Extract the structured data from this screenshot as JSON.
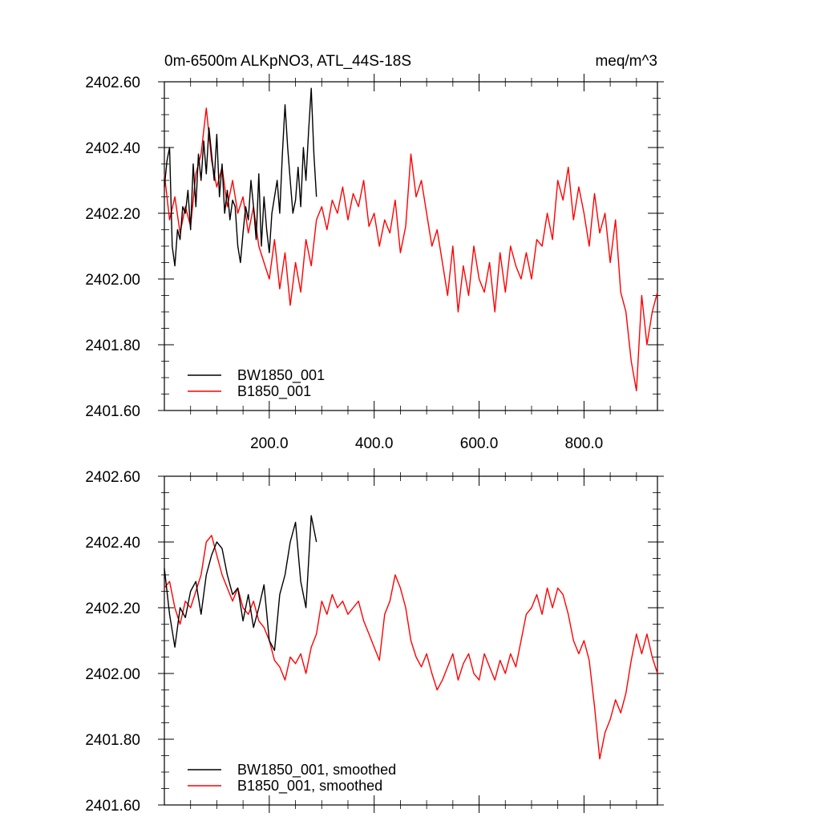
{
  "colors": {
    "BW1850_001": "#000000",
    "B1850_001": "#ff0000"
  },
  "chart_data": [
    {
      "type": "line",
      "title": "0m-6500m ALKpNO3, ATL_44S-18S",
      "units": "meq/m^3",
      "xlim": [
        0,
        940
      ],
      "ylim": [
        2401.6,
        2402.6
      ],
      "yticks": [
        2401.6,
        2401.8,
        2402.0,
        2402.2,
        2402.4,
        2402.6
      ],
      "ytick_labels": [
        "2401.60",
        "2401.80",
        "2402.00",
        "2402.20",
        "2402.40",
        "2402.60"
      ],
      "xticks": [
        200,
        400,
        600,
        800
      ],
      "xtick_labels": [
        "200.0",
        "400.0",
        "600.0",
        "800.0"
      ],
      "legend_position": "bottom-left",
      "series": [
        {
          "name": "BW1850_001",
          "color": "#000000",
          "x": [
            0,
            5,
            10,
            15,
            20,
            25,
            30,
            35,
            40,
            45,
            50,
            55,
            60,
            65,
            70,
            75,
            80,
            85,
            90,
            95,
            100,
            105,
            110,
            115,
            120,
            125,
            130,
            135,
            140,
            145,
            150,
            155,
            160,
            165,
            170,
            175,
            180,
            185,
            190,
            195,
            200,
            205,
            210,
            215,
            220,
            225,
            230,
            235,
            240,
            245,
            250,
            255,
            260,
            265,
            270,
            275,
            280,
            285,
            290
          ],
          "values": [
            2402.28,
            2402.36,
            2402.4,
            2402.1,
            2402.04,
            2402.15,
            2402.12,
            2402.22,
            2402.2,
            2402.27,
            2402.15,
            2402.35,
            2402.22,
            2402.38,
            2402.3,
            2402.42,
            2402.32,
            2402.46,
            2402.38,
            2402.3,
            2402.44,
            2402.25,
            2402.35,
            2402.2,
            2402.27,
            2402.18,
            2402.24,
            2402.22,
            2402.1,
            2402.05,
            2402.14,
            2402.22,
            2402.18,
            2402.3,
            2402.22,
            2402.12,
            2402.32,
            2402.1,
            2402.25,
            2402.15,
            2402.08,
            2402.2,
            2402.25,
            2402.3,
            2402.2,
            2402.38,
            2402.53,
            2402.4,
            2402.3,
            2402.2,
            2402.24,
            2402.34,
            2402.22,
            2402.4,
            2402.3,
            2402.45,
            2402.58,
            2402.38,
            2402.25
          ]
        },
        {
          "name": "B1850_001",
          "color": "#ff0000",
          "x": [
            0,
            10,
            20,
            30,
            40,
            50,
            60,
            70,
            80,
            90,
            100,
            110,
            120,
            130,
            140,
            150,
            160,
            170,
            180,
            190,
            200,
            210,
            220,
            230,
            240,
            250,
            260,
            270,
            280,
            290,
            300,
            310,
            320,
            330,
            340,
            350,
            360,
            370,
            380,
            390,
            400,
            410,
            420,
            430,
            440,
            450,
            460,
            470,
            480,
            490,
            500,
            510,
            520,
            530,
            540,
            550,
            560,
            570,
            580,
            590,
            600,
            610,
            620,
            630,
            640,
            650,
            660,
            670,
            680,
            690,
            700,
            710,
            720,
            730,
            740,
            750,
            760,
            770,
            780,
            790,
            800,
            810,
            820,
            830,
            840,
            850,
            860,
            870,
            880,
            890,
            900,
            910,
            920,
            930,
            940
          ],
          "values": [
            2402.32,
            2402.18,
            2402.25,
            2402.14,
            2402.22,
            2402.16,
            2402.32,
            2402.38,
            2402.52,
            2402.36,
            2402.28,
            2402.34,
            2402.22,
            2402.3,
            2402.2,
            2402.25,
            2402.14,
            2402.22,
            2402.1,
            2402.05,
            2402.0,
            2402.12,
            2401.97,
            2402.08,
            2401.92,
            2402.05,
            2401.96,
            2402.12,
            2402.04,
            2402.18,
            2402.22,
            2402.15,
            2402.24,
            2402.2,
            2402.28,
            2402.18,
            2402.26,
            2402.22,
            2402.3,
            2402.16,
            2402.2,
            2402.1,
            2402.18,
            2402.14,
            2402.24,
            2402.08,
            2402.16,
            2402.38,
            2402.25,
            2402.3,
            2402.2,
            2402.1,
            2402.15,
            2402.05,
            2401.95,
            2402.1,
            2401.9,
            2402.04,
            2401.95,
            2402.1,
            2402.0,
            2401.96,
            2402.05,
            2401.9,
            2402.08,
            2401.96,
            2402.1,
            2402.04,
            2402.0,
            2402.08,
            2402.0,
            2402.12,
            2402.1,
            2402.2,
            2402.12,
            2402.3,
            2402.24,
            2402.34,
            2402.18,
            2402.28,
            2402.2,
            2402.1,
            2402.26,
            2402.14,
            2402.2,
            2402.05,
            2402.18,
            2401.96,
            2401.9,
            2401.75,
            2401.66,
            2401.95,
            2401.8,
            2401.9,
            2401.96
          ]
        }
      ]
    },
    {
      "type": "line",
      "title": "",
      "xlim": [
        0,
        940
      ],
      "ylim": [
        2401.6,
        2402.6
      ],
      "yticks": [
        2401.6,
        2401.8,
        2402.0,
        2402.2,
        2402.4,
        2402.6
      ],
      "ytick_labels": [
        "2401.60",
        "2401.80",
        "2402.00",
        "2402.20",
        "2402.40",
        "2402.60"
      ],
      "xticks": [
        200,
        400,
        600,
        800
      ],
      "xtick_labels": [],
      "legend_position": "bottom-left",
      "series": [
        {
          "name": "BW1850_001, smoothed",
          "color": "#000000",
          "x": [
            0,
            10,
            20,
            30,
            40,
            50,
            60,
            70,
            80,
            90,
            100,
            110,
            120,
            130,
            140,
            150,
            160,
            170,
            180,
            190,
            200,
            210,
            220,
            230,
            240,
            250,
            260,
            270,
            280,
            290
          ],
          "values": [
            2402.32,
            2402.18,
            2402.08,
            2402.2,
            2402.17,
            2402.25,
            2402.28,
            2402.18,
            2402.3,
            2402.36,
            2402.4,
            2402.38,
            2402.3,
            2402.24,
            2402.26,
            2402.16,
            2402.24,
            2402.14,
            2402.2,
            2402.27,
            2402.1,
            2402.07,
            2402.24,
            2402.3,
            2402.4,
            2402.46,
            2402.28,
            2402.2,
            2402.48,
            2402.4
          ]
        },
        {
          "name": "B1850_001, smoothed",
          "color": "#ff0000",
          "x": [
            0,
            10,
            20,
            30,
            40,
            50,
            60,
            70,
            80,
            90,
            100,
            110,
            120,
            130,
            140,
            150,
            160,
            170,
            180,
            190,
            200,
            210,
            220,
            230,
            240,
            250,
            260,
            270,
            280,
            290,
            300,
            310,
            320,
            330,
            340,
            350,
            360,
            370,
            380,
            390,
            400,
            410,
            420,
            430,
            440,
            450,
            460,
            470,
            480,
            490,
            500,
            510,
            520,
            530,
            540,
            550,
            560,
            570,
            580,
            590,
            600,
            610,
            620,
            630,
            640,
            650,
            660,
            670,
            680,
            690,
            700,
            710,
            720,
            730,
            740,
            750,
            760,
            770,
            780,
            790,
            800,
            810,
            820,
            830,
            840,
            850,
            860,
            870,
            880,
            890,
            900,
            910,
            920,
            930,
            940
          ],
          "values": [
            2402.26,
            2402.28,
            2402.2,
            2402.15,
            2402.22,
            2402.2,
            2402.25,
            2402.3,
            2402.4,
            2402.42,
            2402.36,
            2402.3,
            2402.26,
            2402.22,
            2402.26,
            2402.2,
            2402.18,
            2402.22,
            2402.16,
            2402.14,
            2402.1,
            2402.04,
            2402.02,
            2401.98,
            2402.05,
            2402.03,
            2402.06,
            2402.0,
            2402.08,
            2402.12,
            2402.22,
            2402.18,
            2402.24,
            2402.2,
            2402.22,
            2402.18,
            2402.2,
            2402.22,
            2402.16,
            2402.12,
            2402.08,
            2402.04,
            2402.18,
            2402.22,
            2402.3,
            2402.26,
            2402.2,
            2402.1,
            2402.05,
            2402.02,
            2402.06,
            2402.0,
            2401.95,
            2401.98,
            2402.02,
            2402.06,
            2401.98,
            2402.03,
            2402.06,
            2402.0,
            2401.98,
            2402.06,
            2402.02,
            2401.98,
            2402.04,
            2402.0,
            2402.06,
            2402.02,
            2402.1,
            2402.18,
            2402.2,
            2402.24,
            2402.18,
            2402.26,
            2402.2,
            2402.26,
            2402.24,
            2402.18,
            2402.1,
            2402.06,
            2402.1,
            2402.04,
            2401.9,
            2401.74,
            2401.82,
            2401.86,
            2401.92,
            2401.88,
            2401.94,
            2402.04,
            2402.12,
            2402.06,
            2402.12,
            2402.05,
            2402.0
          ]
        }
      ]
    }
  ]
}
